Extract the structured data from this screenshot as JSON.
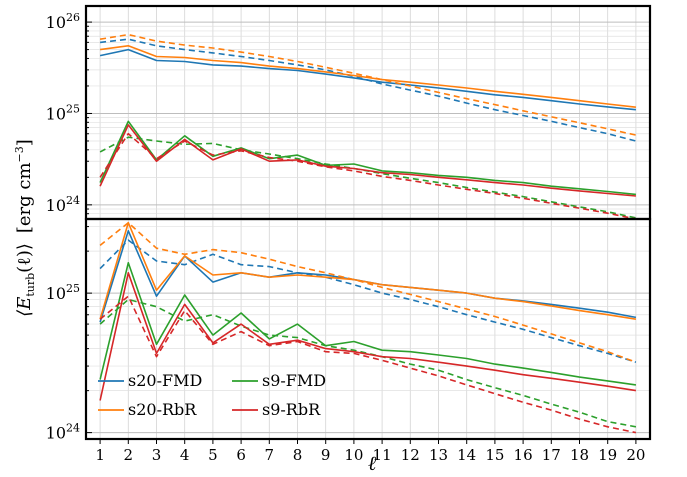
{
  "figure": {
    "ylabel_main": "⟨E",
    "ylabel_sub": "turb",
    "ylabel_rest": "(ℓ)⟩",
    "ylabel_units": "[erg cm",
    "ylabel_units_exp": "−3",
    "ylabel_units_close": "]",
    "xlabel": "ℓ"
  },
  "colors": {
    "s20": "#1f77b4",
    "s20_rbr": "#ff7f0e",
    "s9": "#2ca02c",
    "s9_rbr": "#d62728"
  },
  "chart_data": [
    {
      "type": "line",
      "panel": "top",
      "x": [
        1,
        2,
        3,
        4,
        5,
        6,
        7,
        8,
        9,
        10,
        11,
        12,
        13,
        14,
        15,
        16,
        17,
        18,
        19,
        20
      ],
      "ylim": [
        7e+23,
        1.5e+26
      ],
      "yscale": "log",
      "y_ticks": [
        {
          "base": "10",
          "exp": "24",
          "value": 1e+24
        },
        {
          "base": "10",
          "exp": "25",
          "value": 1e+25
        },
        {
          "base": "10",
          "exp": "26",
          "value": 1e+26
        }
      ],
      "grid": true,
      "series": [
        {
          "name": "s20-FMD",
          "style": "solid",
          "color": "#1f77b4",
          "values": [
            4.3e+25,
            5e+25,
            3.8e+25,
            3.7e+25,
            3.4e+25,
            3.3e+25,
            3.1e+25,
            2.95e+25,
            2.7e+25,
            2.45e+25,
            2.2e+25,
            2.05e+25,
            1.9e+25,
            1.75e+25,
            1.6e+25,
            1.5e+25,
            1.38e+25,
            1.27e+25,
            1.18e+25,
            1.1e+25
          ]
        },
        {
          "style": "dashed",
          "color": "#1f77b4",
          "values": [
            6e+25,
            6.5e+25,
            5.5e+25,
            5e+25,
            4.6e+25,
            4.2e+25,
            3.8e+25,
            3.4e+25,
            3e+25,
            2.55e+25,
            2.1e+25,
            1.8e+25,
            1.55e+25,
            1.3e+25,
            1.1e+25,
            9.5e+24,
            8.2e+24,
            7e+24,
            6e+24,
            5e+24
          ]
        },
        {
          "name": "s20-RbR",
          "style": "solid",
          "color": "#ff7f0e",
          "values": [
            5e+25,
            5.5e+25,
            4.2e+25,
            4.1e+25,
            3.8e+25,
            3.6e+25,
            3.3e+25,
            3.1e+25,
            2.85e+25,
            2.6e+25,
            2.35e+25,
            2.2e+25,
            2.05e+25,
            1.9e+25,
            1.75e+25,
            1.62e+25,
            1.5e+25,
            1.38e+25,
            1.27e+25,
            1.17e+25
          ]
        },
        {
          "style": "dashed",
          "color": "#ff7f0e",
          "values": [
            6.5e+25,
            7.3e+25,
            6.2e+25,
            5.6e+25,
            5.2e+25,
            4.7e+25,
            4.2e+25,
            3.7e+25,
            3.2e+25,
            2.75e+25,
            2.35e+25,
            2e+25,
            1.7e+25,
            1.45e+25,
            1.25e+25,
            1.07e+25,
            9.2e+24,
            7.9e+24,
            6.8e+24,
            5.8e+24
          ]
        },
        {
          "name": "s9-FMD",
          "style": "solid",
          "color": "#2ca02c",
          "values": [
            1.75e+24,
            8.2e+24,
            3.1e+24,
            5.7e+24,
            3.4e+24,
            4.2e+24,
            3.2e+24,
            3.5e+24,
            2.7e+24,
            2.8e+24,
            2.35e+24,
            2.25e+24,
            2.1e+24,
            2e+24,
            1.85e+24,
            1.75e+24,
            1.6e+24,
            1.5e+24,
            1.4e+24,
            1.3e+24
          ]
        },
        {
          "style": "dashed",
          "color": "#2ca02c",
          "values": [
            3.8e+24,
            5.5e+24,
            5e+24,
            4.6e+24,
            4.7e+24,
            4e+24,
            3.6e+24,
            3.2e+24,
            2.8e+24,
            2.5e+24,
            2.2e+24,
            1.95e+24,
            1.75e+24,
            1.55e+24,
            1.38e+24,
            1.23e+24,
            1.08e+24,
            9.5e+23,
            8.4e+23,
            7.2e+23
          ]
        },
        {
          "name": "s9-RbR",
          "style": "solid",
          "color": "#d62728",
          "values": [
            1.6e+24,
            7.5e+24,
            3e+24,
            5.2e+24,
            3.1e+24,
            4.1e+24,
            3e+24,
            3.1e+24,
            2.65e+24,
            2.5e+24,
            2.25e+24,
            2.15e+24,
            2e+24,
            1.88e+24,
            1.75e+24,
            1.65e+24,
            1.52e+24,
            1.42e+24,
            1.33e+24,
            1.25e+24
          ]
        },
        {
          "style": "dashed",
          "color": "#d62728",
          "values": [
            2e+24,
            6e+24,
            3.2e+24,
            5e+24,
            3.5e+24,
            3.9e+24,
            3.3e+24,
            3e+24,
            2.6e+24,
            2.35e+24,
            2.05e+24,
            1.85e+24,
            1.65e+24,
            1.48e+24,
            1.33e+24,
            1.18e+24,
            1.04e+24,
            9.2e+23,
            8.1e+23,
            7e+23
          ]
        }
      ]
    },
    {
      "type": "line",
      "panel": "bottom",
      "x": [
        1,
        2,
        3,
        4,
        5,
        6,
        7,
        8,
        9,
        10,
        11,
        12,
        13,
        14,
        15,
        16,
        17,
        18,
        19,
        20
      ],
      "ylim": [
        9e+23,
        3.4e+25
      ],
      "yscale": "log",
      "y_ticks": [
        {
          "base": "10",
          "exp": "24",
          "value": 1e+24
        },
        {
          "base": "10",
          "exp": "25",
          "value": 1e+25
        }
      ],
      "grid": true,
      "legend": "lower-left",
      "series": [
        {
          "name": "s20-FMD",
          "style": "solid",
          "color": "#1f77b4",
          "values": [
            6.2e+24,
            2.8e+25,
            9.5e+24,
            1.85e+25,
            1.2e+25,
            1.4e+25,
            1.3e+25,
            1.4e+25,
            1.35e+25,
            1.25e+25,
            1.15e+25,
            1.1e+25,
            1.05e+25,
            1e+25,
            9.2e+24,
            8.8e+24,
            8.3e+24,
            7.8e+24,
            7.3e+24,
            6.7e+24
          ]
        },
        {
          "style": "dashed",
          "color": "#1f77b4",
          "values": [
            1.5e+25,
            2.4e+25,
            1.7e+25,
            1.6e+25,
            1.9e+25,
            1.6e+25,
            1.55e+25,
            1.4e+25,
            1.3e+25,
            1.15e+25,
            1e+25,
            9e+24,
            8e+24,
            7e+24,
            6.2e+24,
            5.5e+24,
            4.8e+24,
            4.2e+24,
            3.7e+24,
            3.2e+24
          ]
        },
        {
          "name": "s20-RbR",
          "style": "solid",
          "color": "#ff7f0e",
          "values": [
            6.5e+24,
            3.2e+25,
            1.05e+25,
            1.85e+25,
            1.35e+25,
            1.4e+25,
            1.3e+25,
            1.35e+25,
            1.3e+25,
            1.25e+25,
            1.15e+25,
            1.1e+25,
            1.05e+25,
            1e+25,
            9.2e+24,
            8.7e+24,
            8.1e+24,
            7.5e+24,
            7e+24,
            6.5e+24
          ]
        },
        {
          "style": "dashed",
          "color": "#ff7f0e",
          "values": [
            2.2e+25,
            3.2e+25,
            2.1e+25,
            1.9e+25,
            2.05e+25,
            1.95e+25,
            1.75e+25,
            1.55e+25,
            1.4e+25,
            1.25e+25,
            1.1e+25,
            9.8e+24,
            8.7e+24,
            7.7e+24,
            6.8e+24,
            5.9e+24,
            5.1e+24,
            4.4e+24,
            3.8e+24,
            3.2e+24
          ]
        },
        {
          "name": "s9-FMD",
          "style": "solid",
          "color": "#2ca02c",
          "values": [
            2.4e+24,
            1.65e+25,
            4.3e+24,
            9.7e+24,
            5e+24,
            7.2e+24,
            4.7e+24,
            6e+24,
            4.2e+24,
            4.5e+24,
            3.9e+24,
            3.8e+24,
            3.6e+24,
            3.4e+24,
            3.1e+24,
            2.9e+24,
            2.7e+24,
            2.5e+24,
            2.35e+24,
            2.2e+24
          ]
        },
        {
          "style": "dashed",
          "color": "#2ca02c",
          "values": [
            6e+24,
            9e+24,
            8e+24,
            6.3e+24,
            7e+24,
            5.8e+24,
            5e+24,
            4.8e+24,
            4.2e+24,
            3.9e+24,
            3.5e+24,
            3.1e+24,
            2.8e+24,
            2.4e+24,
            2.1e+24,
            1.85e+24,
            1.6e+24,
            1.4e+24,
            1.2e+24,
            1.1e+24
          ]
        },
        {
          "name": "s9-RbR",
          "style": "solid",
          "color": "#d62728",
          "values": [
            1.7e+24,
            1.4e+25,
            3.7e+24,
            8.3e+24,
            4.4e+24,
            6e+24,
            4.3e+24,
            4.6e+24,
            4e+24,
            3.8e+24,
            3.5e+24,
            3.4e+24,
            3.2e+24,
            3e+24,
            2.8e+24,
            2.6e+24,
            2.45e+24,
            2.3e+24,
            2.15e+24,
            2e+24
          ]
        },
        {
          "style": "dashed",
          "color": "#d62728",
          "values": [
            6.5e+24,
            9.5e+24,
            3.5e+24,
            7.5e+24,
            4.3e+24,
            5.3e+24,
            4.2e+24,
            4.5e+24,
            3.8e+24,
            3.7e+24,
            3.3e+24,
            2.9e+24,
            2.55e+24,
            2.2e+24,
            1.9e+24,
            1.65e+24,
            1.45e+24,
            1.25e+24,
            1.1e+24,
            1e+24
          ]
        }
      ]
    }
  ]
}
